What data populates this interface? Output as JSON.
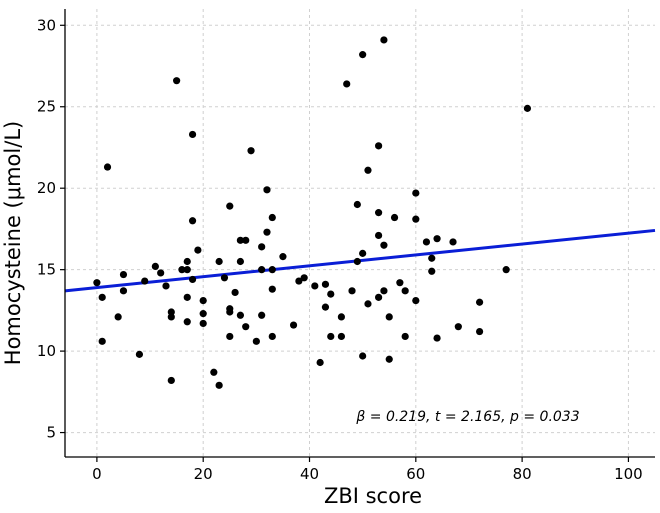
{
  "chart_data": {
    "type": "scatter",
    "xlabel": "ZBI score",
    "ylabel": "Homocysteine (μmol/L)",
    "xlim": [
      -6,
      105
    ],
    "ylim": [
      3.5,
      31
    ],
    "x_ticks": [
      0,
      20,
      40,
      60,
      80,
      100
    ],
    "y_ticks": [
      5,
      10,
      15,
      20,
      25,
      30
    ],
    "grid": true,
    "annotation": "β = 0.219, t = 2.165, p = 0.033",
    "colors": {
      "points": "#000000",
      "regression": "#0a1ed6",
      "grid": "#d0d0d0"
    },
    "regression": {
      "intercept": 13.9,
      "slope": 0.0334,
      "x_range": [
        -6,
        105
      ]
    },
    "points": [
      [
        0,
        14.2
      ],
      [
        1,
        13.3
      ],
      [
        1,
        10.6
      ],
      [
        2,
        21.3
      ],
      [
        4,
        12.1
      ],
      [
        5,
        14.7
      ],
      [
        5,
        13.7
      ],
      [
        8,
        9.8
      ],
      [
        9,
        14.3
      ],
      [
        11,
        15.2
      ],
      [
        12,
        14.8
      ],
      [
        13,
        14.0
      ],
      [
        14,
        12.4
      ],
      [
        14,
        12.1
      ],
      [
        14,
        8.2
      ],
      [
        15,
        26.6
      ],
      [
        16,
        15.0
      ],
      [
        17,
        15.5
      ],
      [
        17,
        15.0
      ],
      [
        17,
        13.3
      ],
      [
        17,
        11.8
      ],
      [
        18,
        23.3
      ],
      [
        18,
        18.0
      ],
      [
        18,
        14.4
      ],
      [
        19,
        16.2
      ],
      [
        20,
        13.1
      ],
      [
        20,
        12.3
      ],
      [
        20,
        11.7
      ],
      [
        22,
        8.7
      ],
      [
        23,
        7.9
      ],
      [
        23,
        15.5
      ],
      [
        24,
        14.5
      ],
      [
        25,
        18.9
      ],
      [
        25,
        12.6
      ],
      [
        25,
        12.4
      ],
      [
        25,
        10.9
      ],
      [
        26,
        13.6
      ],
      [
        27,
        16.8
      ],
      [
        27,
        15.5
      ],
      [
        27,
        12.2
      ],
      [
        28,
        16.8
      ],
      [
        28,
        11.5
      ],
      [
        29,
        22.3
      ],
      [
        30,
        10.6
      ],
      [
        31,
        16.4
      ],
      [
        31,
        15.0
      ],
      [
        31,
        12.2
      ],
      [
        32,
        19.9
      ],
      [
        32,
        17.3
      ],
      [
        33,
        18.2
      ],
      [
        33,
        15.0
      ],
      [
        33,
        13.8
      ],
      [
        33,
        10.9
      ],
      [
        35,
        15.8
      ],
      [
        37,
        11.6
      ],
      [
        38,
        14.3
      ],
      [
        39,
        14.5
      ],
      [
        41,
        14.0
      ],
      [
        42,
        9.3
      ],
      [
        43,
        14.1
      ],
      [
        43,
        12.7
      ],
      [
        44,
        13.5
      ],
      [
        44,
        10.9
      ],
      [
        46,
        12.1
      ],
      [
        46,
        10.9
      ],
      [
        47,
        26.4
      ],
      [
        48,
        13.7
      ],
      [
        49,
        19.0
      ],
      [
        49,
        15.5
      ],
      [
        50,
        28.2
      ],
      [
        50,
        16.0
      ],
      [
        50,
        9.7
      ],
      [
        51,
        21.1
      ],
      [
        51,
        12.9
      ],
      [
        53,
        22.6
      ],
      [
        53,
        18.5
      ],
      [
        53,
        17.1
      ],
      [
        53,
        13.3
      ],
      [
        54,
        29.1
      ],
      [
        54,
        16.5
      ],
      [
        54,
        13.7
      ],
      [
        55,
        12.1
      ],
      [
        55,
        9.5
      ],
      [
        56,
        18.2
      ],
      [
        57,
        14.2
      ],
      [
        58,
        13.7
      ],
      [
        58,
        10.9
      ],
      [
        60,
        19.7
      ],
      [
        60,
        18.1
      ],
      [
        60,
        13.1
      ],
      [
        62,
        16.7
      ],
      [
        63,
        15.7
      ],
      [
        63,
        14.9
      ],
      [
        64,
        16.9
      ],
      [
        64,
        10.8
      ],
      [
        67,
        16.7
      ],
      [
        68,
        11.5
      ],
      [
        72,
        13.0
      ],
      [
        72,
        11.2
      ],
      [
        77,
        15.0
      ],
      [
        81,
        24.9
      ]
    ]
  }
}
